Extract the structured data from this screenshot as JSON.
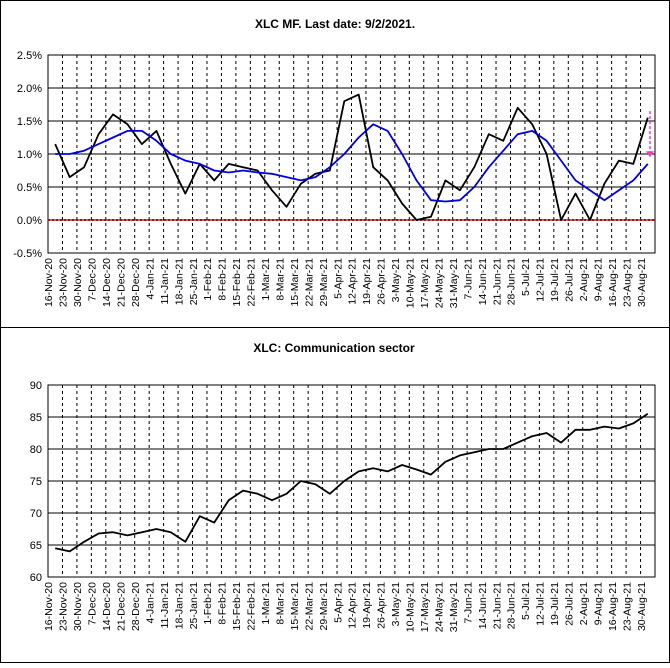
{
  "chart_data": [
    {
      "type": "line",
      "title": "XLC MF. Last date: 9/2/2021.",
      "xlabel": "",
      "ylabel": "",
      "ylim": [
        -0.5,
        2.5
      ],
      "y_ticks": [
        "-0.5%",
        "0.0%",
        "0.5%",
        "1.0%",
        "1.5%",
        "2.0%",
        "2.5%"
      ],
      "categories": [
        "16-Nov-20",
        "23-Nov-20",
        "30-Nov-20",
        "7-Dec-20",
        "14-Dec-20",
        "21-Dec-20",
        "28-Dec-20",
        "4-Jan-21",
        "11-Jan-21",
        "18-Jan-21",
        "25-Jan-21",
        "1-Feb-21",
        "8-Feb-21",
        "15-Feb-21",
        "22-Feb-21",
        "1-Mar-21",
        "8-Mar-21",
        "15-Mar-21",
        "22-Mar-21",
        "29-Mar-21",
        "5-Apr-21",
        "12-Apr-21",
        "19-Apr-21",
        "26-Apr-21",
        "3-May-21",
        "10-May-21",
        "17-May-21",
        "24-May-21",
        "31-May-21",
        "7-Jun-21",
        "14-Jun-21",
        "21-Jun-21",
        "28-Jun-21",
        "5-Jul-21",
        "12-Jul-21",
        "19-Jul-21",
        "26-Jul-21",
        "2-Aug-21",
        "9-Aug-21",
        "16-Aug-21",
        "23-Aug-21",
        "30-Aug-21"
      ],
      "grid": "vertical dashed weekly, horizontal solid",
      "reference_line": {
        "y": 0.0,
        "color": "#cc0000",
        "style": "dotted"
      },
      "projection_arrow": {
        "from": 1.65,
        "to": 0.95,
        "color": "#ff33cc",
        "style": "dashed"
      },
      "series": [
        {
          "color": "#000000",
          "values": [
            1.15,
            0.65,
            0.8,
            1.3,
            1.6,
            1.45,
            1.15,
            1.35,
            0.85,
            0.4,
            0.85,
            0.6,
            0.85,
            0.8,
            0.75,
            0.45,
            0.2,
            0.55,
            0.7,
            0.75,
            1.8,
            1.9,
            0.8,
            0.6,
            0.25,
            0.0,
            0.05,
            0.6,
            0.45,
            0.8,
            1.3,
            1.2,
            1.7,
            1.45,
            1.0,
            0.0,
            0.4,
            0.0,
            0.55,
            0.9,
            0.85,
            1.55
          ]
        },
        {
          "color": "#0000dd",
          "values": [
            1.0,
            1.0,
            1.05,
            1.15,
            1.25,
            1.35,
            1.35,
            1.2,
            1.0,
            0.9,
            0.85,
            0.75,
            0.72,
            0.75,
            0.72,
            0.7,
            0.65,
            0.6,
            0.65,
            0.8,
            1.0,
            1.25,
            1.45,
            1.35,
            1.0,
            0.6,
            0.3,
            0.28,
            0.3,
            0.5,
            0.8,
            1.05,
            1.3,
            1.35,
            1.2,
            0.9,
            0.6,
            0.45,
            0.3,
            0.45,
            0.6,
            0.85
          ]
        }
      ]
    },
    {
      "type": "line",
      "title": "XLC: Communication sector",
      "xlabel": "",
      "ylabel": "",
      "ylim": [
        60,
        90
      ],
      "y_ticks": [
        "60",
        "65",
        "70",
        "75",
        "80",
        "85",
        "90"
      ],
      "categories": [
        "16-Nov-20",
        "23-Nov-20",
        "30-Nov-20",
        "7-Dec-20",
        "14-Dec-20",
        "21-Dec-20",
        "28-Dec-20",
        "4-Jan-21",
        "11-Jan-21",
        "18-Jan-21",
        "25-Jan-21",
        "1-Feb-21",
        "8-Feb-21",
        "15-Feb-21",
        "22-Feb-21",
        "1-Mar-21",
        "8-Mar-21",
        "15-Mar-21",
        "22-Mar-21",
        "29-Mar-21",
        "5-Apr-21",
        "12-Apr-21",
        "19-Apr-21",
        "26-Apr-21",
        "3-May-21",
        "10-May-21",
        "17-May-21",
        "24-May-21",
        "31-May-21",
        "7-Jun-21",
        "14-Jun-21",
        "21-Jun-21",
        "28-Jun-21",
        "5-Jul-21",
        "12-Jul-21",
        "19-Jul-21",
        "26-Jul-21",
        "2-Aug-21",
        "9-Aug-21",
        "16-Aug-21",
        "23-Aug-21",
        "30-Aug-21"
      ],
      "grid": "vertical dashed weekly, horizontal solid",
      "series": [
        {
          "color": "#000000",
          "values": [
            64.5,
            64.0,
            65.5,
            66.8,
            67.0,
            66.5,
            67.0,
            67.5,
            67.0,
            65.5,
            69.5,
            68.5,
            72.0,
            73.5,
            73.0,
            72.0,
            73.0,
            75.0,
            74.5,
            73.0,
            75.0,
            76.5,
            77.0,
            76.5,
            77.5,
            76.8,
            76.0,
            78.0,
            79.0,
            79.5,
            80.0,
            80.0,
            81.0,
            82.0,
            82.5,
            81.0,
            83.0,
            83.0,
            83.5,
            83.2,
            84.0,
            85.5
          ]
        }
      ]
    }
  ]
}
